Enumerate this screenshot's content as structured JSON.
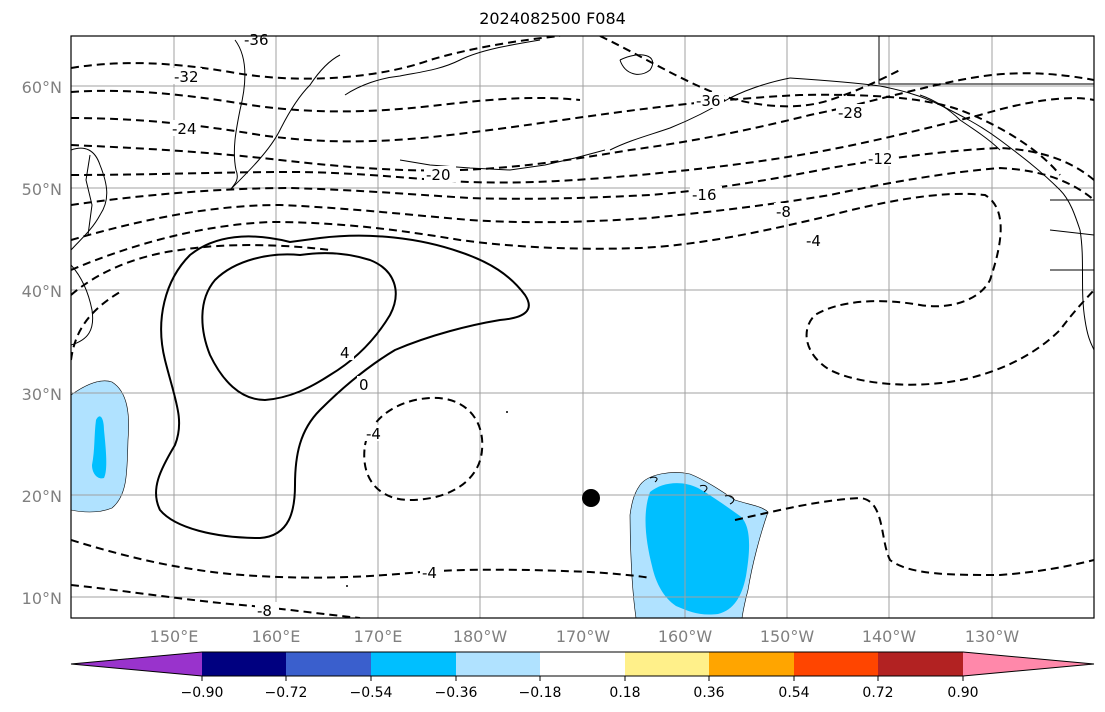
{
  "title": "2024082500 F084",
  "map": {
    "lat_labels": [
      "60°N",
      "50°N",
      "40°N",
      "30°N",
      "20°N",
      "10°N"
    ],
    "lon_labels": [
      "150°E",
      "160°E",
      "170°E",
      "180°W",
      "170°W",
      "160°W",
      "150°W",
      "140°W",
      "130°W"
    ],
    "contour_labels": {
      "c36a": "-36",
      "c32": "-32",
      "c24": "-24",
      "c36b": "-36",
      "c28": "-28",
      "c20": "-20",
      "c16": "-16",
      "c12": "-12",
      "c8a": "-8",
      "c4a": "-4",
      "cpos4": "4",
      "czero": "0",
      "c4b": "-4",
      "c4c": "-4",
      "c8b": "-8"
    },
    "marker": "black-dot"
  },
  "colorbar": {
    "colors": [
      "#9933cc",
      "#000080",
      "#3a5fcd",
      "#00bfff",
      "#b0e2ff",
      "#ffffff",
      "#fff08a",
      "#ffa500",
      "#ff4500",
      "#b22222",
      "#ff88aa"
    ],
    "tick_labels": [
      "−0.90",
      "−0.72",
      "−0.54",
      "−0.36",
      "−0.18",
      "0.18",
      "0.36",
      "0.54",
      "0.72",
      "0.90"
    ]
  }
}
